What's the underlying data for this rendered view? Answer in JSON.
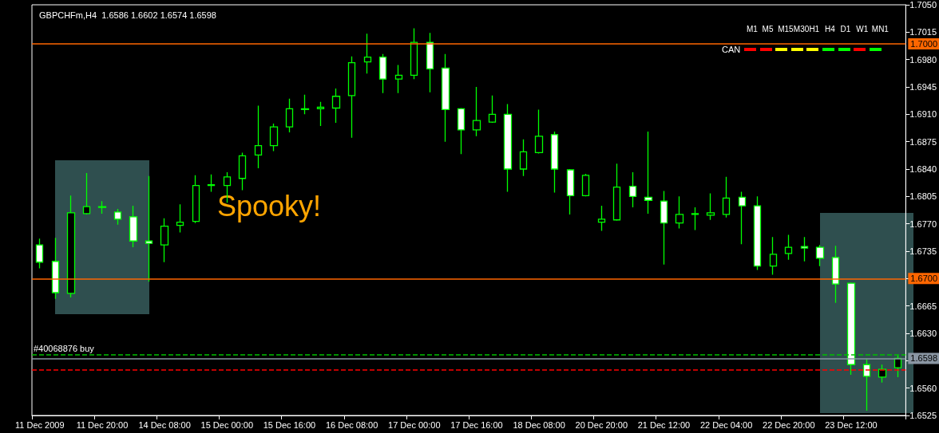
{
  "chart_data": {
    "type": "candlestick",
    "title": "GBPCHFm,H4  1.6586 1.6602 1.6574 1.6598",
    "categories": [
      "11 Dec 2009",
      null,
      null,
      null,
      "11 Dec 20:00",
      null,
      null,
      null,
      "14 Dec 08:00",
      null,
      null,
      null,
      "15 Dec 00:00",
      null,
      null,
      null,
      "15 Dec 16:00",
      null,
      null,
      null,
      "16 Dec 08:00",
      null,
      null,
      null,
      "17 Dec 00:00",
      null,
      null,
      null,
      "17 Dec 16:00",
      null,
      null,
      null,
      "18 Dec 08:00",
      null,
      null,
      null,
      "20 Dec 20:00",
      null,
      null,
      null,
      "21 Dec 12:00",
      null,
      null,
      null,
      "22 Dec 04:00",
      null,
      null,
      null,
      "22 Dec 20:00",
      null,
      null,
      null,
      "23 Dec 12:00",
      null,
      null,
      null
    ],
    "series": [
      {
        "color": "#00ff00",
        "ohlc": [
          [
            1.6743,
            1.6751,
            1.6713,
            1.6721
          ],
          [
            1.6722,
            1.6752,
            1.6674,
            1.6682
          ],
          [
            1.6681,
            1.6806,
            1.6676,
            1.6784
          ],
          [
            1.6783,
            1.6835,
            1.6782,
            1.6792
          ],
          [
            1.6791,
            1.6799,
            1.6783,
            1.6792
          ],
          [
            1.6785,
            1.6789,
            1.6769,
            1.6776
          ],
          [
            1.6779,
            1.6793,
            1.674,
            1.6748
          ],
          [
            1.6748,
            1.6831,
            1.6696,
            1.6745
          ],
          [
            1.6743,
            1.6777,
            1.6721,
            1.6767
          ],
          [
            1.6768,
            1.6795,
            1.6759,
            1.6772
          ],
          [
            1.6773,
            1.6832,
            1.6771,
            1.6819
          ],
          [
            1.6819,
            1.6833,
            1.6811,
            1.682
          ],
          [
            1.6819,
            1.6836,
            1.6797,
            1.683
          ],
          [
            1.6828,
            1.6861,
            1.6813,
            1.6857
          ],
          [
            1.6858,
            1.6921,
            1.6841,
            1.687
          ],
          [
            1.687,
            1.6898,
            1.6863,
            1.6894
          ],
          [
            1.6894,
            1.693,
            1.6887,
            1.6917
          ],
          [
            1.6916,
            1.6935,
            1.691,
            1.6917
          ],
          [
            1.6917,
            1.6926,
            1.6895,
            1.6919
          ],
          [
            1.6918,
            1.6943,
            1.6899,
            1.6933
          ],
          [
            1.6934,
            1.6984,
            1.688,
            1.6976
          ],
          [
            1.6977,
            1.7013,
            1.6962,
            1.6983
          ],
          [
            1.6983,
            1.6987,
            1.6937,
            1.6955
          ],
          [
            1.6955,
            1.6973,
            1.6937,
            1.696
          ],
          [
            1.696,
            1.702,
            1.6955,
            1.7002
          ],
          [
            1.7002,
            1.7014,
            1.6938,
            1.6968
          ],
          [
            1.6969,
            1.6987,
            1.6875,
            1.6916
          ],
          [
            1.6917,
            1.6918,
            1.6859,
            1.689
          ],
          [
            1.689,
            1.6945,
            1.6882,
            1.6902
          ],
          [
            1.69,
            1.6934,
            1.6899,
            1.691
          ],
          [
            1.691,
            1.6923,
            1.6811,
            1.684
          ],
          [
            1.684,
            1.6878,
            1.6831,
            1.6862
          ],
          [
            1.6861,
            1.6916,
            1.686,
            1.6882
          ],
          [
            1.6884,
            1.6888,
            1.681,
            1.684
          ],
          [
            1.6839,
            1.684,
            1.6782,
            1.6806
          ],
          [
            1.6806,
            1.6834,
            1.6805,
            1.6832
          ],
          [
            1.6772,
            1.6793,
            1.6761,
            1.6776
          ],
          [
            1.6775,
            1.6847,
            1.6774,
            1.6817
          ],
          [
            1.6818,
            1.6836,
            1.6791,
            1.6805
          ],
          [
            1.6804,
            1.6888,
            1.6783,
            1.68
          ],
          [
            1.6799,
            1.6812,
            1.6718,
            1.6771
          ],
          [
            1.6771,
            1.6805,
            1.6764,
            1.6782
          ],
          [
            1.6782,
            1.6791,
            1.6762,
            1.6783
          ],
          [
            1.6781,
            1.6809,
            1.6775,
            1.6784
          ],
          [
            1.6782,
            1.683,
            1.6778,
            1.6803
          ],
          [
            1.6804,
            1.6811,
            1.6744,
            1.6793
          ],
          [
            1.6793,
            1.6805,
            1.6711,
            1.6716
          ],
          [
            1.6716,
            1.6753,
            1.6705,
            1.6731
          ],
          [
            1.6732,
            1.6756,
            1.6724,
            1.674
          ],
          [
            1.6741,
            1.6753,
            1.6722,
            1.6739
          ],
          [
            1.674,
            1.6743,
            1.6716,
            1.6726
          ],
          [
            1.6727,
            1.6742,
            1.6669,
            1.6693
          ],
          [
            1.6694,
            1.6695,
            1.6577,
            1.659
          ],
          [
            1.659,
            1.6597,
            1.6531,
            1.6575
          ],
          [
            1.6574,
            1.659,
            1.6567,
            1.6584
          ],
          [
            1.6586,
            1.6602,
            1.6574,
            1.6598
          ]
        ]
      }
    ],
    "ylim": [
      1.6525,
      1.705
    ],
    "yticks": [
      1.6525,
      {
        "value": 1.656,
        "label": "1.6560"
      },
      {
        "value": 1.6595,
        "label": null
      },
      {
        "value": 1.663,
        "label": "1.6630"
      },
      1.6665,
      {
        "value": 1.67,
        "label": null
      },
      1.6735,
      {
        "value": 1.677,
        "label": "1.6770"
      },
      1.6805,
      {
        "value": 1.684,
        "label": "1.6840"
      },
      1.6875,
      {
        "value": 1.691,
        "label": "1.6910"
      },
      1.6945,
      {
        "value": 1.698,
        "label": "1.6980"
      },
      1.7015,
      {
        "value": 1.705,
        "label": "1.7050"
      }
    ],
    "ref_lines": [
      {
        "axis": "y",
        "value": 1.7,
        "label": "1.7000",
        "color": "#ff6600",
        "line_style": "solid"
      },
      {
        "axis": "y",
        "value": 1.67,
        "label": "1.6700",
        "color": "#ff6600",
        "line_style": "solid"
      },
      {
        "axis": "y",
        "value": 1.6598,
        "label": "1.6598",
        "color": "#8a96a3",
        "line_style": "solid"
      },
      {
        "axis": "y",
        "value": 1.6603,
        "label": "#40068876 buy",
        "color": "#00c000",
        "line_style": "dashed"
      },
      {
        "axis": "y",
        "value": 1.6583,
        "label": null,
        "color": "#ff0000",
        "line_style": "dashed"
      }
    ],
    "annotations": [
      "Spooky!",
      "CAN",
      "M1",
      "M5",
      "M15",
      "M30",
      "H1",
      "H4",
      "D1",
      "W1",
      "MN1"
    ],
    "grid": false
  }
}
